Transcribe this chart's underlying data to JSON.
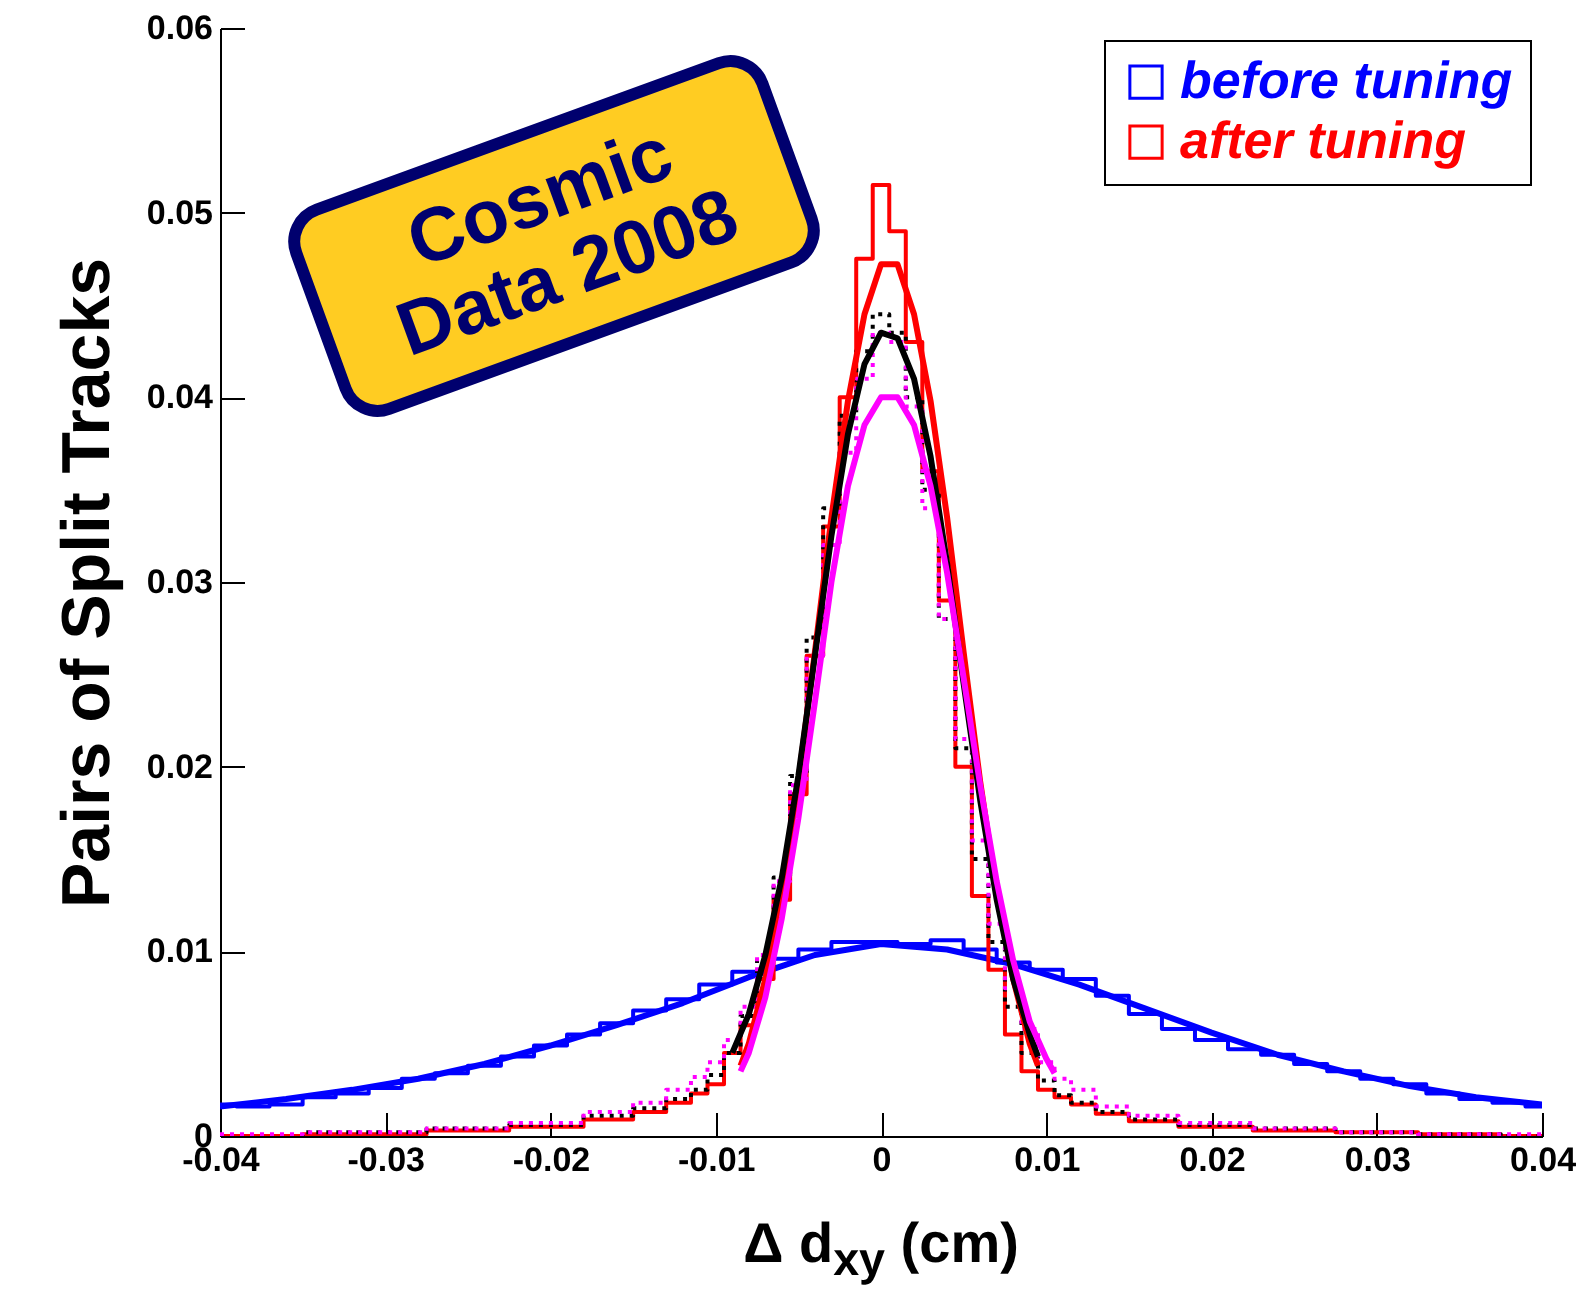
{
  "chart_data": {
    "type": "step",
    "xlabel": "Δ d$_{xy}$ (cm)",
    "ylabel": "Pairs of Split Tracks",
    "annotations": [
      "Cosmic Data 2008"
    ],
    "xlim": [
      -0.04,
      0.04
    ],
    "xticks": [
      -0.04,
      -0.03,
      -0.02,
      -0.01,
      0,
      0.01,
      0.02,
      0.03,
      0.04
    ],
    "ylim": [
      0,
      0.06
    ],
    "yticks": [
      0,
      0.01,
      0.02,
      0.03,
      0.04,
      0.05,
      0.06
    ],
    "grid": false,
    "legend": "top right",
    "series": [
      {
        "name": "before tuning",
        "color": "#0000ff",
        "x": [
          -0.04,
          -0.038,
          -0.036,
          -0.034,
          -0.032,
          -0.03,
          -0.028,
          -0.026,
          -0.024,
          -0.022,
          -0.02,
          -0.018,
          -0.016,
          -0.014,
          -0.012,
          -0.01,
          -0.008,
          -0.006,
          -0.004,
          -0.002,
          0,
          0.002,
          0.004,
          0.006,
          0.008,
          0.01,
          0.012,
          0.014,
          0.016,
          0.018,
          0.02,
          0.022,
          0.024,
          0.026,
          0.028,
          0.03,
          0.032,
          0.034,
          0.036,
          0.038,
          0.04
        ],
        "values": [
          0.0017,
          0.0016,
          0.0017,
          0.0021,
          0.0023,
          0.0026,
          0.0031,
          0.0034,
          0.0038,
          0.0043,
          0.0049,
          0.0055,
          0.0061,
          0.0068,
          0.0074,
          0.0082,
          0.0089,
          0.0096,
          0.0101,
          0.0105,
          0.0105,
          0.0104,
          0.0106,
          0.0101,
          0.0094,
          0.009,
          0.0085,
          0.0076,
          0.0066,
          0.0058,
          0.0052,
          0.0047,
          0.0044,
          0.0039,
          0.0035,
          0.0031,
          0.0028,
          0.0023,
          0.002,
          0.0018,
          0.0016
        ]
      },
      {
        "type": "line",
        "color": "#0000ff",
        "x": [
          -0.04,
          -0.036,
          -0.032,
          -0.028,
          -0.024,
          -0.02,
          -0.016,
          -0.012,
          -0.008,
          -0.004,
          0,
          0.004,
          0.008,
          0.012,
          0.016,
          0.02,
          0.024,
          0.028,
          0.032,
          0.036,
          0.04
        ],
        "values": [
          0.0016,
          0.002,
          0.0025,
          0.0031,
          0.0039,
          0.0049,
          0.006,
          0.0072,
          0.0086,
          0.0098,
          0.0104,
          0.0101,
          0.0093,
          0.0082,
          0.0069,
          0.0056,
          0.0044,
          0.0035,
          0.0027,
          0.0021,
          0.0017
        ]
      },
      {
        "name": "after tuning",
        "color": "#ff0000",
        "x": [
          -0.04,
          -0.03,
          -0.025,
          -0.02,
          -0.016,
          -0.014,
          -0.012,
          -0.011,
          -0.01,
          -0.009,
          -0.008,
          -0.007,
          -0.006,
          -0.005,
          -0.004,
          -0.003,
          -0.002,
          -0.001,
          0,
          0.001,
          0.002,
          0.003,
          0.004,
          0.005,
          0.006,
          0.007,
          0.008,
          0.009,
          0.01,
          0.011,
          0.012,
          0.014,
          0.016,
          0.02,
          0.025,
          0.03,
          0.035,
          0.04
        ],
        "values": [
          0,
          0.0001,
          0.0003,
          0.0005,
          0.0009,
          0.0013,
          0.0018,
          0.0023,
          0.0028,
          0.0045,
          0.006,
          0.0085,
          0.0128,
          0.0185,
          0.026,
          0.033,
          0.04,
          0.0475,
          0.0515,
          0.049,
          0.043,
          0.036,
          0.029,
          0.02,
          0.013,
          0.009,
          0.0055,
          0.0035,
          0.0025,
          0.0021,
          0.0017,
          0.0012,
          0.0008,
          0.0005,
          0.0003,
          0.0002,
          0.0001,
          0
        ]
      },
      {
        "color": "#000000",
        "line_style": "dotted",
        "x": [
          -0.04,
          -0.03,
          -0.025,
          -0.02,
          -0.016,
          -0.014,
          -0.012,
          -0.011,
          -0.01,
          -0.009,
          -0.008,
          -0.007,
          -0.006,
          -0.005,
          -0.004,
          -0.003,
          -0.002,
          -0.001,
          0,
          0.001,
          0.002,
          0.003,
          0.004,
          0.005,
          0.006,
          0.007,
          0.008,
          0.009,
          0.01,
          0.011,
          0.012,
          0.014,
          0.016,
          0.02,
          0.025,
          0.03,
          0.035,
          0.04
        ],
        "values": [
          0,
          0.0002,
          0.0004,
          0.0006,
          0.0011,
          0.0015,
          0.002,
          0.0025,
          0.0033,
          0.0045,
          0.0065,
          0.0095,
          0.014,
          0.0195,
          0.027,
          0.034,
          0.039,
          0.0425,
          0.0445,
          0.0435,
          0.04,
          0.035,
          0.028,
          0.021,
          0.015,
          0.0105,
          0.007,
          0.0045,
          0.003,
          0.0022,
          0.0018,
          0.0013,
          0.0009,
          0.0006,
          0.0004,
          0.0002,
          0.0001,
          0
        ]
      },
      {
        "color": "#ff00ff",
        "line_style": "dotted",
        "x": [
          -0.04,
          -0.03,
          -0.025,
          -0.02,
          -0.016,
          -0.014,
          -0.012,
          -0.011,
          -0.01,
          -0.009,
          -0.008,
          -0.007,
          -0.006,
          -0.005,
          -0.004,
          -0.003,
          -0.002,
          -0.001,
          0,
          0.001,
          0.002,
          0.003,
          0.004,
          0.005,
          0.006,
          0.007,
          0.008,
          0.009,
          0.01,
          0.011,
          0.012,
          0.014,
          0.016,
          0.02,
          0.025,
          0.03,
          0.035,
          0.04
        ],
        "values": [
          0.0001,
          0.0002,
          0.0004,
          0.0007,
          0.0013,
          0.0018,
          0.0025,
          0.0032,
          0.004,
          0.0052,
          0.007,
          0.0098,
          0.0138,
          0.019,
          0.026,
          0.032,
          0.037,
          0.041,
          0.0435,
          0.043,
          0.0395,
          0.034,
          0.028,
          0.0215,
          0.016,
          0.0115,
          0.008,
          0.0058,
          0.004,
          0.0031,
          0.0025,
          0.0016,
          0.0011,
          0.0007,
          0.0004,
          0.0002,
          0.0001,
          0.0001
        ]
      },
      {
        "type": "line",
        "color": "#ff0000",
        "x": [
          -0.0085,
          -0.008,
          -0.007,
          -0.006,
          -0.005,
          -0.004,
          -0.003,
          -0.002,
          -0.001,
          0,
          0.001,
          0.002,
          0.003,
          0.004,
          0.005,
          0.006,
          0.007,
          0.008,
          0.009,
          0.0095
        ],
        "values": [
          0.0038,
          0.005,
          0.0085,
          0.0132,
          0.0192,
          0.0262,
          0.0335,
          0.0398,
          0.0445,
          0.0472,
          0.0472,
          0.0445,
          0.0398,
          0.0335,
          0.0262,
          0.0192,
          0.0132,
          0.0085,
          0.005,
          0.0038
        ]
      },
      {
        "type": "line",
        "color": "#000000",
        "x": [
          -0.009,
          -0.008,
          -0.007,
          -0.006,
          -0.005,
          -0.004,
          -0.003,
          -0.002,
          -0.001,
          0,
          0.001,
          0.002,
          0.003,
          0.004,
          0.005,
          0.006,
          0.007,
          0.008,
          0.009,
          0.0095
        ],
        "values": [
          0.0045,
          0.0066,
          0.0098,
          0.014,
          0.0195,
          0.026,
          0.0325,
          0.038,
          0.0418,
          0.0435,
          0.0432,
          0.041,
          0.0368,
          0.031,
          0.0245,
          0.0182,
          0.0128,
          0.0085,
          0.0055,
          0.0043
        ]
      },
      {
        "type": "line",
        "color": "#ff00ff",
        "x": [
          -0.0085,
          -0.008,
          -0.007,
          -0.006,
          -0.005,
          -0.004,
          -0.003,
          -0.002,
          -0.001,
          0,
          0.001,
          0.002,
          0.003,
          0.004,
          0.005,
          0.006,
          0.007,
          0.008,
          0.009,
          0.01,
          0.0105
        ],
        "values": [
          0.0035,
          0.0045,
          0.0075,
          0.0118,
          0.0172,
          0.0235,
          0.03,
          0.0352,
          0.0385,
          0.04,
          0.04,
          0.0385,
          0.0352,
          0.0305,
          0.0248,
          0.019,
          0.0138,
          0.0095,
          0.0062,
          0.0042,
          0.0034
        ]
      }
    ]
  }
}
